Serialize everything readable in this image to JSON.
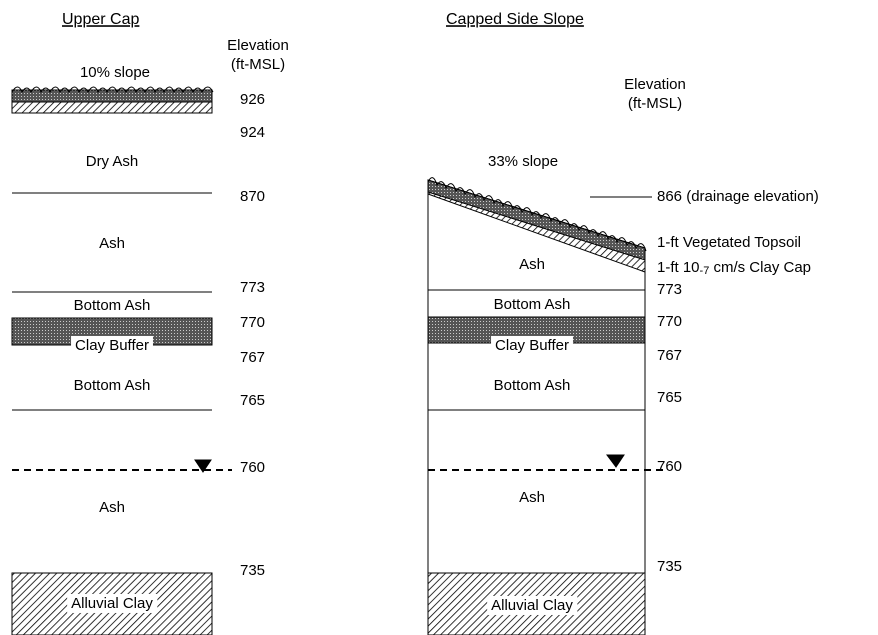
{
  "left": {
    "title": "Upper Cap",
    "elevation_label": [
      "Elevation",
      "(ft-MSL)"
    ],
    "slope": "10% slope",
    "layers": [
      "Dry Ash",
      "Ash",
      "Bottom Ash",
      "Clay Buffer",
      "Bottom Ash",
      "Ash",
      "Alluvial Clay"
    ],
    "elevations": [
      926,
      924,
      870,
      773,
      770,
      767,
      765,
      760,
      735
    ]
  },
  "right": {
    "title": "Capped Side Slope",
    "elevation_label": [
      "Elevation",
      "(ft-MSL)"
    ],
    "slope": "33% slope",
    "layers": [
      "Ash",
      "Bottom Ash",
      "Clay Buffer",
      "Bottom Ash",
      "Ash",
      "Alluvial Clay"
    ],
    "elevations": [
      "866 (drainage elevation)",
      773,
      770,
      767,
      765,
      760,
      735
    ],
    "notes": [
      [
        "1-ft  Vegetated Topsoil"
      ],
      [
        "1-ft 10",
        "-7",
        " cm/s Clay Cap"
      ]
    ]
  }
}
